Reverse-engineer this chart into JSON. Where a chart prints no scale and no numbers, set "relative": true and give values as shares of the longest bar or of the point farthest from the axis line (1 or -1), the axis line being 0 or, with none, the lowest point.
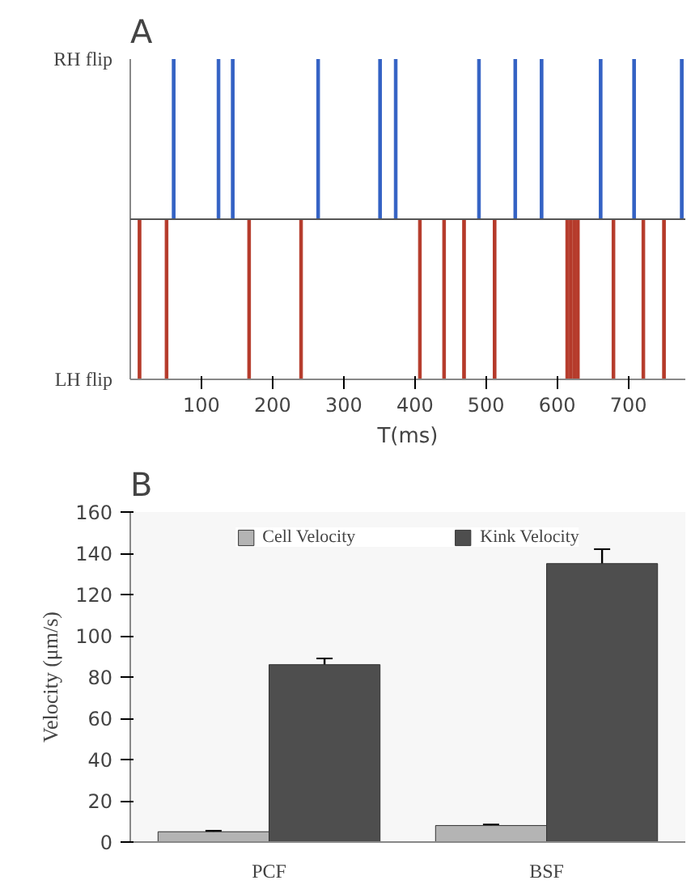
{
  "chart_data": [
    {
      "type": "bar",
      "title": "A",
      "xlabel": "T(ms)",
      "xlim": [
        0,
        780
      ],
      "xticks": [
        100,
        200,
        300,
        400,
        500,
        600,
        700
      ],
      "relative": true,
      "annotations": [
        "RH flip",
        "LH flip"
      ],
      "grid": false,
      "legend": false,
      "ref_lines": [
        {
          "axis": "y",
          "value": 0
        }
      ],
      "series": [
        {
          "color": "#3462c4",
          "x": [
            61,
            124,
            144,
            264,
            351,
            373,
            490,
            541,
            578,
            661,
            708,
            775
          ],
          "values": [
            1,
            1,
            1,
            1,
            1,
            1,
            1,
            1,
            1,
            1,
            1,
            1
          ]
        },
        {
          "color": "#b53a2a",
          "x": [
            13,
            51,
            167,
            240,
            407,
            441,
            469,
            512,
            614,
            619,
            624,
            629,
            679,
            721,
            750
          ],
          "values": [
            -1,
            -1,
            -1,
            -1,
            -1,
            -1,
            -1,
            -1,
            -1,
            -1,
            -1,
            -1,
            -1,
            -1,
            -1
          ]
        }
      ]
    },
    {
      "type": "bar",
      "title": "B",
      "ylabel": "Velocity (μm/s)",
      "categories": [
        "PCF",
        "BSF"
      ],
      "ylim": [
        0,
        160
      ],
      "yticks": [
        0,
        20,
        40,
        60,
        80,
        100,
        120,
        140,
        160
      ],
      "grid": false,
      "legend": "top",
      "series": [
        {
          "name": "Cell Velocity",
          "color": "#b4b4b4",
          "values": [
            5,
            8
          ],
          "errors": [
            0.5,
            0.5
          ]
        },
        {
          "name": "Kink Velocity",
          "color": "#4e4e4e",
          "values": [
            86,
            135
          ],
          "errors": [
            3,
            7
          ]
        }
      ]
    }
  ]
}
